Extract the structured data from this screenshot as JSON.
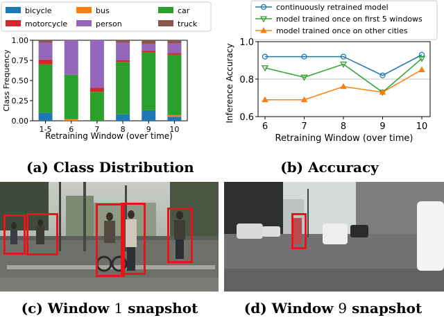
{
  "chart_data": [
    {
      "type": "bar",
      "stacked": true,
      "categories": [
        "1-5",
        "6",
        "7",
        "8",
        "9",
        "10"
      ],
      "xlabel": "Retraining Window (over time)",
      "ylabel": "Class Frequency",
      "ylim": [
        0,
        1.0
      ],
      "yticks": [
        "0.00",
        "0.25",
        "0.50",
        "0.75",
        "1.00"
      ],
      "legend_position": "top",
      "series": [
        {
          "name": "bicycle",
          "color": "#1f77b4",
          "values": [
            0.1,
            0.0,
            0.0,
            0.08,
            0.13,
            0.05
          ]
        },
        {
          "name": "bus",
          "color": "#ff7f0e",
          "values": [
            0.0,
            0.02,
            0.0,
            0.0,
            0.0,
            0.02
          ]
        },
        {
          "name": "car",
          "color": "#2ca02c",
          "values": [
            0.6,
            0.55,
            0.36,
            0.65,
            0.72,
            0.75
          ]
        },
        {
          "name": "motorcycle",
          "color": "#d62728",
          "values": [
            0.06,
            0.0,
            0.05,
            0.02,
            0.02,
            0.02
          ]
        },
        {
          "name": "person",
          "color": "#9467bd",
          "values": [
            0.21,
            0.43,
            0.59,
            0.22,
            0.08,
            0.12
          ]
        },
        {
          "name": "truck",
          "color": "#8c564b",
          "values": [
            0.03,
            0.0,
            0.0,
            0.03,
            0.05,
            0.04
          ]
        }
      ]
    },
    {
      "type": "line",
      "x": [
        6,
        7,
        8,
        9,
        10
      ],
      "xlabel": "Retraining Window (over time)",
      "ylabel": "Inference Accuracy",
      "ylim": [
        0.6,
        1.0
      ],
      "yticks": [
        "0.6",
        "0.8",
        "1.0"
      ],
      "grid": "horizontal",
      "legend_position": "top",
      "series": [
        {
          "name": "continuously retrained model",
          "color": "#1f77b4",
          "marker": "circle",
          "values": [
            0.92,
            0.92,
            0.92,
            0.82,
            0.93
          ]
        },
        {
          "name": "model trained once on first 5 windows",
          "color": "#2ca02c",
          "marker": "triangle-down",
          "values": [
            0.86,
            0.81,
            0.88,
            0.73,
            0.91
          ]
        },
        {
          "name": "model trained once on other cities",
          "color": "#ff7f0e",
          "marker": "triangle-up",
          "values": [
            0.69,
            0.69,
            0.76,
            0.73,
            0.85
          ]
        }
      ]
    }
  ],
  "captions": {
    "a": "(a) Class Distribution",
    "b": "(b) Accuracy",
    "c_prefix": "(c) Window ",
    "c_num": "1",
    "c_suffix": " snapshot",
    "d_prefix": "(d) Window ",
    "d_num": "9",
    "d_suffix": " snapshot"
  }
}
